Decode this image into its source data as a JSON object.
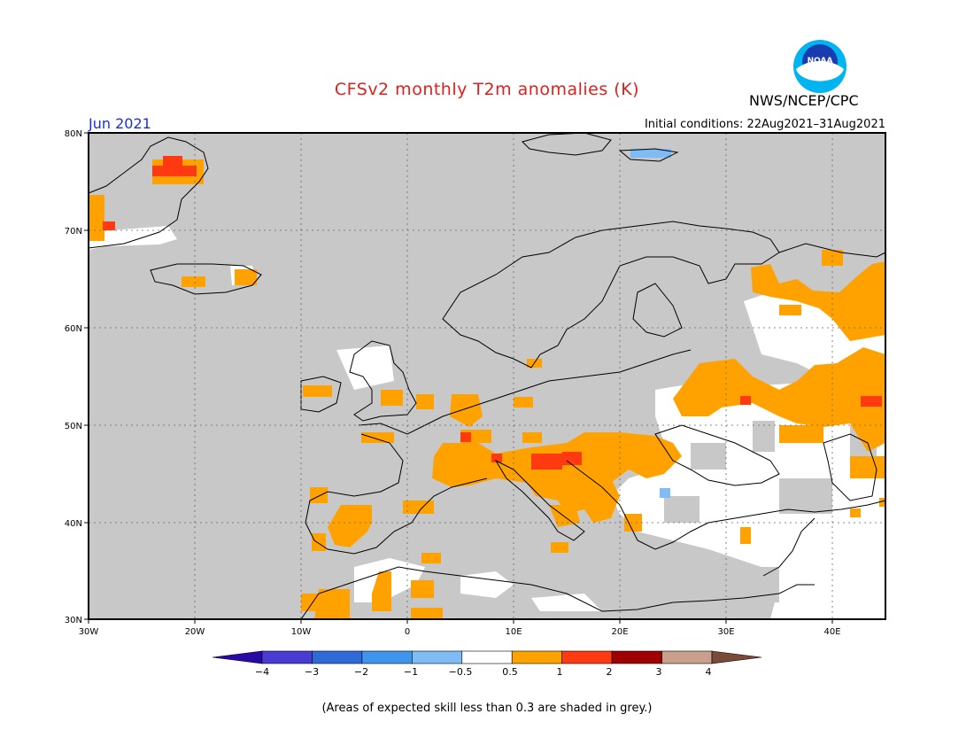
{
  "header": {
    "title": "CFSv2 monthly T2m anomalies (K)",
    "agency": "NWS/NCEP/CPC",
    "logo_text": "NOAA",
    "month": "Jun 2021",
    "initial_conditions": "Initial conditions: 22Aug2021–31Aug2021"
  },
  "axes": {
    "lat_labels": [
      "80N",
      "70N",
      "60N",
      "50N",
      "40N",
      "30N"
    ],
    "lon_labels": [
      "30W",
      "20W",
      "10W",
      "0",
      "10E",
      "20E",
      "30E",
      "40E"
    ]
  },
  "colorbar": {
    "labels": [
      "−4",
      "−3",
      "−2",
      "−1",
      "−0.5",
      "0.5",
      "1",
      "2",
      "3",
      "4"
    ],
    "colors": [
      "#2a0aa6",
      "#4a3bd4",
      "#2f6ad9",
      "#3f94ee",
      "#7fbcf5",
      "#ffffff",
      "#ffa200",
      "#ff3a10",
      "#a00000",
      "#c8a08c",
      "#7a4a3a"
    ]
  },
  "legend_colors": {
    "grey_low_skill": "#c8c8c8",
    "orange": "#ffa200",
    "red": "#ff3a10",
    "light_blue": "#7fbcf5"
  },
  "footer": {
    "caption": "(Areas of expected skill less than 0.3 are shaded in grey.)"
  }
}
